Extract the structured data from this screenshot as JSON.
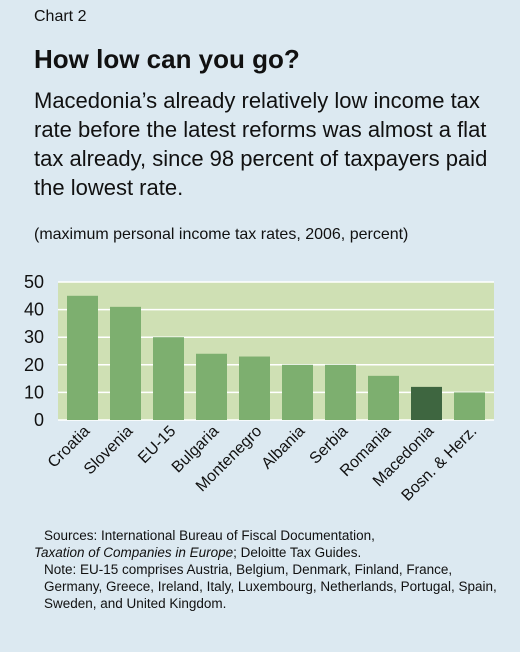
{
  "header": {
    "label": "Chart 2",
    "title": "How low can you go?",
    "subtitle": "Macedonia’s already relatively low income tax rate before the latest reforms was almost a flat tax already, since 98 percent of taxpayers paid the lowest rate.",
    "units": "(maximum personal income tax rates, 2006, percent)"
  },
  "colors": {
    "plot_bg": "#cfe0b4",
    "bar": "#7daf6f",
    "highlight": "#3e6640",
    "grid": "#ffffff"
  },
  "chart_data": {
    "type": "bar",
    "categories": [
      "Croatia",
      "Slovenia",
      "EU-15",
      "Bulgaria",
      "Montenegro",
      "Albania",
      "Serbia",
      "Romania",
      "Macedonia",
      "Bosn. & Herz."
    ],
    "values": [
      45,
      41,
      30,
      24,
      23,
      20,
      20,
      16,
      12,
      10
    ],
    "highlight": "Macedonia",
    "ylim": [
      0,
      50
    ],
    "yticks": [
      0,
      10,
      20,
      30,
      40,
      50
    ],
    "grid": true
  },
  "footer": {
    "sources_line1": "Sources: International Bureau of Fiscal Documentation,",
    "sources_line2_italic": "Taxation of Companies in Europe",
    "sources_line2_rest": "; Deloitte Tax Guides.",
    "note": "Note: EU-15 comprises Austria, Belgium, Denmark, Finland, France, Germany, Greece, Ireland, Italy, Luxembourg, Netherlands, Portugal, Spain, Sweden, and United Kingdom."
  }
}
